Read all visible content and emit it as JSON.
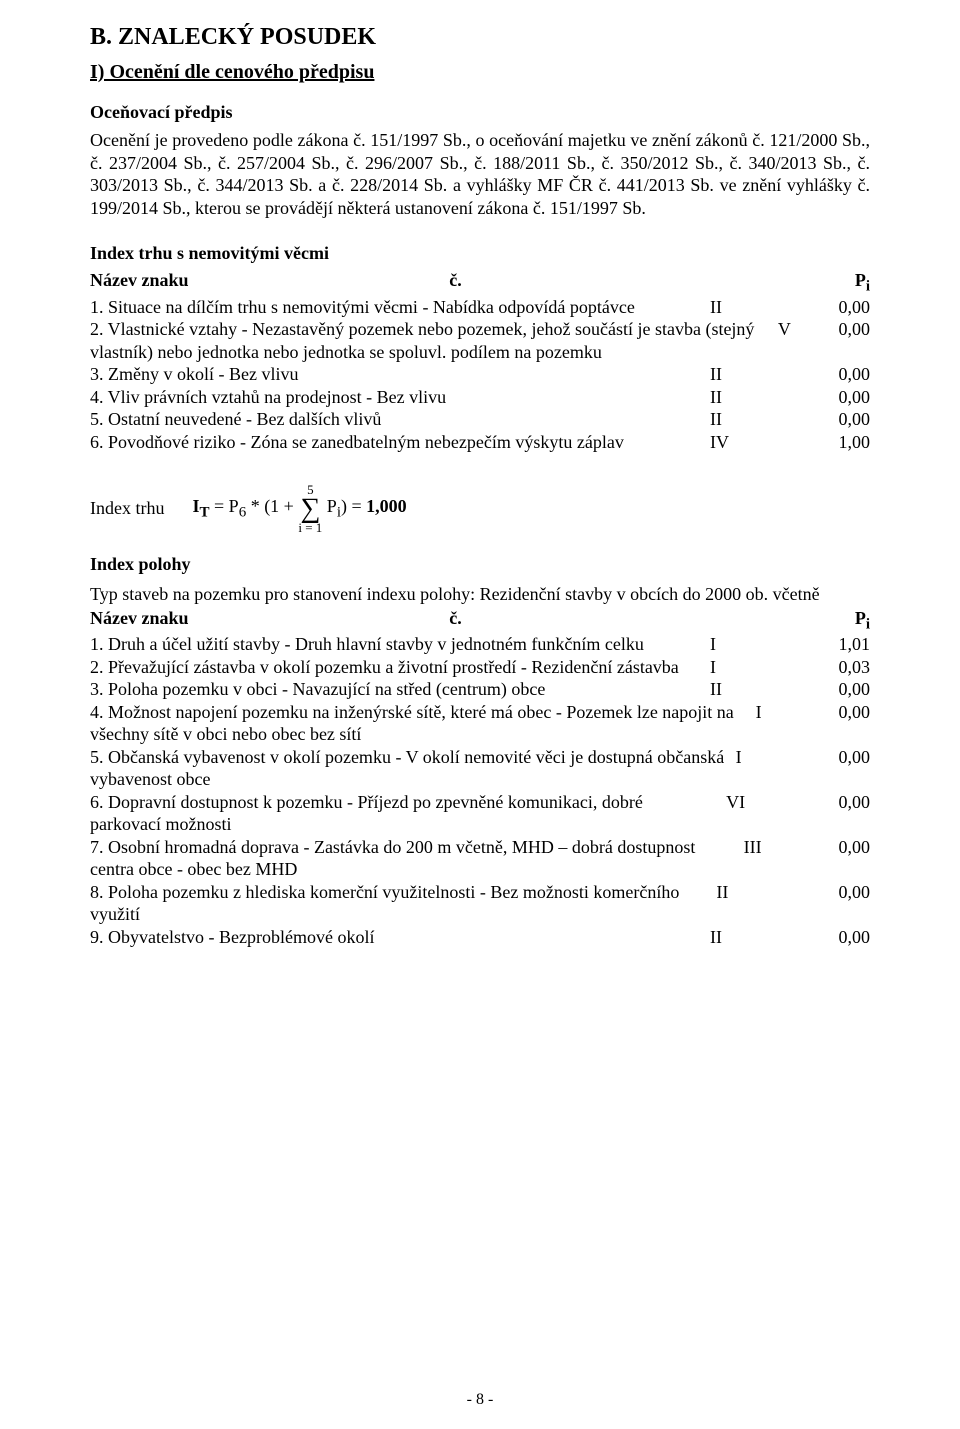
{
  "title_main": "B. ZNALECKÝ POSUDEK",
  "title_sub": "I) Ocenění dle cenového předpisu",
  "predpis_label": "Oceňovací předpis",
  "predpis_text": "Ocenění je provedeno podle zákona č. 151/1997 Sb., o oceňování majetku ve znění zákonů č. 121/2000 Sb., č. 237/2004 Sb., č. 257/2004 Sb., č. 296/2007 Sb., č. 188/2011 Sb., č. 350/2012 Sb., č. 340/2013 Sb., č. 303/2013 Sb., č. 344/2013 Sb. a č. 228/2014 Sb. a vyhlášky MF ČR č. 441/2013 Sb. ve znění vyhlášky č. 199/2014 Sb., kterou se provádějí některá ustanovení zákona č. 151/1997 Sb.",
  "index_trhu_title": "Index trhu s nemovitými věcmi",
  "header": {
    "name": "Název znaku",
    "c": "č.",
    "p": "Pi"
  },
  "trhu": [
    {
      "label": "1. Situace na dílčím trhu s nemovitými věcmi - Nabídka odpovídá poptávce",
      "c": "II",
      "p": "0,00"
    },
    {
      "label": "2. Vlastnické vztahy - Nezastavěný pozemek nebo pozemek, jehož součástí je stavba (stejný vlastník) nebo jednotka nebo jednotka se spoluvl. podílem na pozemku",
      "c": "V",
      "p": "0,00"
    },
    {
      "label": "3. Změny v okolí - Bez vlivu",
      "c": "II",
      "p": "0,00"
    },
    {
      "label": "4. Vliv právních vztahů na prodejnost - Bez vlivu",
      "c": "II",
      "p": "0,00"
    },
    {
      "label": "5. Ostatní neuvedené - Bez dalších vlivů",
      "c": "II",
      "p": "0,00"
    },
    {
      "label": "6. Povodňové riziko - Zóna se zanedbatelným nebezpečím výskytu záplav",
      "c": "IV",
      "p": "1,00"
    }
  ],
  "formula": {
    "lead": "Index trhu",
    "eq_left": "IT = P6 * (1 + ",
    "sum_top": "5",
    "sum_sym": "∑",
    "sum_bot": "i = 1",
    "eq_mid": " Pi) = ",
    "result": "1,000",
    "superscript_T": "T",
    "superscript_6": "6",
    "subscript_i": "i"
  },
  "index_polohy_title": "Index polohy",
  "typ_text": "Typ staveb na pozemku pro stanovení indexu polohy: Rezidenční stavby v obcích do 2000 ob. včetně",
  "polohy": [
    {
      "label": "1. Druh a účel užití stavby - Druh hlavní stavby v jednotném funkčním celku",
      "c": "I",
      "p": "1,01"
    },
    {
      "label": "2. Převažující zástavba v okolí pozemku a životní prostředí - Rezidenční zástavba",
      "c": "I",
      "p": "0,03"
    },
    {
      "label": "3. Poloha pozemku v obci - Navazující na střed (centrum) obce",
      "c": "II",
      "p": "0,00"
    },
    {
      "label": "4. Možnost napojení pozemku na inženýrské sítě, které má obec - Pozemek lze napojit na všechny sítě v obci nebo obec bez sítí",
      "c": "I",
      "p": "0,00"
    },
    {
      "label": "5. Občanská vybavenost v okolí pozemku - V okolí nemovité věci je dostupná občanská vybavenost obce",
      "c": "I",
      "p": "0,00"
    },
    {
      "label": "6. Dopravní dostupnost k pozemku - Příjezd po zpevněné komunikaci, dobré parkovací možnosti",
      "c": "VI",
      "p": "0,00"
    },
    {
      "label": "7. Osobní hromadná doprava - Zastávka do 200 m včetně, MHD – dobrá dostupnost centra obce - obec bez MHD",
      "c": "III",
      "p": "0,00"
    },
    {
      "label": "8. Poloha pozemku z hlediska komerční využitelnosti - Bez možnosti komerčního využití",
      "c": "II",
      "p": "0,00"
    },
    {
      "label": "9. Obyvatelstvo - Bezproblémové okolí",
      "c": "II",
      "p": "0,00"
    }
  ],
  "footer": "- 8 -"
}
